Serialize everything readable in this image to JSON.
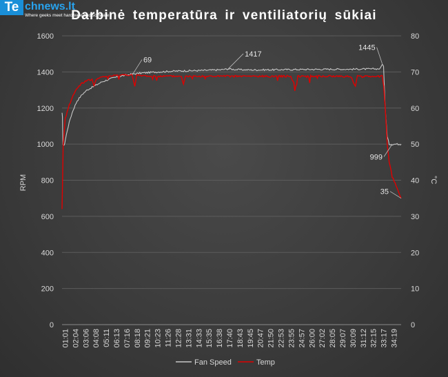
{
  "logo": {
    "prefix": "Te",
    "rest": "chnews.lt",
    "tagline": "Where geeks meet hardware and software"
  },
  "chart_data": {
    "type": "line",
    "title": "Darbinė temperatūra ir ventiliatorių sūkiai",
    "ylabel": "RPM",
    "y2label": "°C",
    "ylim": [
      0,
      1600
    ],
    "y2lim": [
      0,
      80
    ],
    "yticks": [
      "0",
      "200",
      "400",
      "600",
      "800",
      "1000",
      "1200",
      "1400",
      "1600"
    ],
    "y2ticks": [
      "0",
      "10",
      "20",
      "30",
      "40",
      "50",
      "60",
      "70",
      "80"
    ],
    "xticks": [
      "01:01",
      "02:04",
      "03:06",
      "04:08",
      "05:11",
      "06:13",
      "07:16",
      "08:18",
      "09:21",
      "10:23",
      "11:26",
      "12:28",
      "13:31",
      "14:33",
      "15:35",
      "16:38",
      "17:40",
      "18:43",
      "19:45",
      "20:47",
      "21:50",
      "22:53",
      "23:55",
      "24:57",
      "26:00",
      "27:02",
      "28:05",
      "29:07",
      "30:09",
      "31:12",
      "32:15",
      "33:17",
      "34:19"
    ],
    "grid": true,
    "legend_position": "bottom",
    "colors": {
      "fan": "#c8c8c8",
      "temp": "#e00000"
    },
    "series": [
      {
        "name": "Fan Speed",
        "axis": "left",
        "points": [
          [
            0.98,
            1170
          ],
          [
            1.02,
            1150
          ],
          [
            1.07,
            1000
          ],
          [
            1.12,
            990
          ],
          [
            1.25,
            1005
          ],
          [
            1.5,
            1075
          ],
          [
            1.8,
            1140
          ],
          [
            2.1,
            1190
          ],
          [
            2.5,
            1240
          ],
          [
            3.0,
            1275
          ],
          [
            3.5,
            1300
          ],
          [
            4.0,
            1315
          ],
          [
            4.5,
            1330
          ],
          [
            5.0,
            1345
          ],
          [
            5.5,
            1355
          ],
          [
            6.0,
            1365
          ],
          [
            6.5,
            1372
          ],
          [
            7.0,
            1378
          ],
          [
            7.5,
            1383
          ],
          [
            8.0,
            1388
          ],
          [
            8.5,
            1391
          ],
          [
            9.0,
            1394
          ],
          [
            10.0,
            1398
          ],
          [
            11.0,
            1401
          ],
          [
            12.0,
            1404
          ],
          [
            13.0,
            1406
          ],
          [
            14.0,
            1407
          ],
          [
            15.0,
            1408
          ],
          [
            16.0,
            1410
          ],
          [
            17.0,
            1412
          ],
          [
            17.7,
            1417
          ],
          [
            18.5,
            1413
          ],
          [
            20.0,
            1411
          ],
          [
            22.0,
            1412
          ],
          [
            24.0,
            1413
          ],
          [
            26.0,
            1414
          ],
          [
            28.0,
            1415
          ],
          [
            30.0,
            1415
          ],
          [
            31.0,
            1416
          ],
          [
            32.0,
            1416
          ],
          [
            33.0,
            1418
          ],
          [
            33.2,
            1445
          ],
          [
            33.33,
            1430
          ],
          [
            33.5,
            1200
          ],
          [
            33.7,
            1040
          ],
          [
            33.9,
            1000
          ],
          [
            34.2,
            999
          ],
          [
            34.5,
            1000
          ],
          [
            35.0,
            1000
          ],
          [
            35.1,
            1000
          ]
        ]
      },
      {
        "name": "Temp",
        "axis": "right",
        "points": [
          [
            0.98,
            32
          ],
          [
            1.1,
            50
          ],
          [
            1.3,
            57
          ],
          [
            1.6,
            60
          ],
          [
            2.0,
            63
          ],
          [
            2.5,
            65.5
          ],
          [
            3.0,
            67
          ],
          [
            3.5,
            67.5
          ],
          [
            4.0,
            68
          ],
          [
            4.2,
            66
          ],
          [
            4.4,
            68
          ],
          [
            5.0,
            68.5
          ],
          [
            5.5,
            68.8
          ],
          [
            6.0,
            69
          ],
          [
            7.0,
            69.2
          ],
          [
            8.0,
            69.2
          ],
          [
            8.3,
            66
          ],
          [
            8.5,
            69
          ],
          [
            9.0,
            69
          ],
          [
            10.0,
            68.8
          ],
          [
            11.0,
            68.8
          ],
          [
            12.0,
            68.8
          ],
          [
            13.0,
            68.8
          ],
          [
            13.2,
            66.5
          ],
          [
            13.4,
            68.8
          ],
          [
            15.0,
            68.8
          ],
          [
            17.0,
            68.8
          ],
          [
            18.0,
            68.8
          ],
          [
            20.0,
            68.8
          ],
          [
            22.0,
            68.8
          ],
          [
            24.0,
            68.8
          ],
          [
            24.5,
            66
          ],
          [
            24.7,
            68.8
          ],
          [
            26.0,
            68.8
          ],
          [
            28.0,
            68.8
          ],
          [
            30.0,
            68.8
          ],
          [
            30.5,
            66
          ],
          [
            30.7,
            68.8
          ],
          [
            33.0,
            68.8
          ],
          [
            33.2,
            69
          ],
          [
            33.35,
            66
          ],
          [
            33.5,
            60
          ],
          [
            33.7,
            50
          ],
          [
            33.9,
            45
          ],
          [
            34.2,
            41
          ],
          [
            34.5,
            39
          ],
          [
            34.8,
            37
          ],
          [
            35.1,
            35
          ]
        ]
      }
    ],
    "annotations": [
      {
        "label": "69",
        "series": "Temp",
        "x": 8.05,
        "y": 69.2
      },
      {
        "label": "1417",
        "series": "Fan Speed",
        "x": 17.7,
        "y": 1417
      },
      {
        "label": "1445",
        "series": "Fan Speed",
        "x": 33.2,
        "y": 1445
      },
      {
        "label": "999",
        "series": "Fan Speed",
        "x": 34.2,
        "y": 999
      },
      {
        "label": "35",
        "series": "Temp",
        "x": 35.1,
        "y": 35
      }
    ]
  }
}
